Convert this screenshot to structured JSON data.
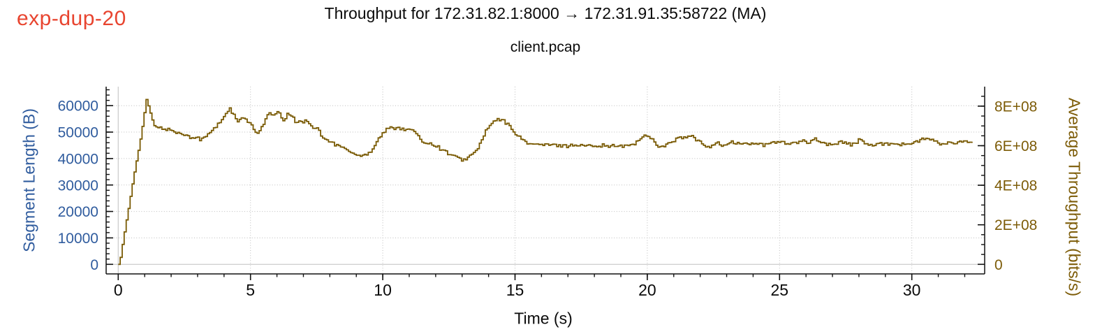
{
  "corner_label": "exp-dup-20",
  "title": "Throughput for 172.31.82.1:8000 → 172.31.91.35:58722 (MA)",
  "subtitle": "client.pcap",
  "colors": {
    "corner_label": "#e84530",
    "left_axis": "#305c9e",
    "right_axis": "#7d5c08",
    "line": "#795a03",
    "grid_dotted": "#bdbdbd",
    "grid_zero": "#c8c8c8",
    "axis": "#111111",
    "title_text": "#0b0b0b"
  },
  "chart_data": {
    "type": "line",
    "title": "Throughput for 172.31.82.1:8000 → 172.31.91.35:58722 (MA)",
    "subtitle": "client.pcap",
    "legend": "none",
    "grid": {
      "style": "dotted",
      "v_lines_at_seconds": [
        5,
        10,
        15,
        20,
        25,
        30
      ],
      "h_lines_at_segment_length": [
        10000,
        20000,
        30000,
        40000,
        50000,
        60000
      ],
      "solid_zero_lines": true
    },
    "x_axis": {
      "label": "Time (s)",
      "unit": "s",
      "tick_labels": [
        "0",
        "5",
        "10",
        "15",
        "20",
        "25",
        "30"
      ],
      "tick_values": [
        0,
        5,
        10,
        15,
        20,
        25,
        30
      ],
      "minor_tick_step": 1,
      "range": [
        0,
        32.75
      ]
    },
    "y_axis_left": {
      "label": "Segment Length (B)",
      "unit": "B",
      "color": "#305c9e",
      "tick_labels": [
        "0",
        "10000",
        "20000",
        "30000",
        "40000",
        "50000",
        "60000"
      ],
      "tick_values": [
        0,
        10000,
        20000,
        30000,
        40000,
        50000,
        60000
      ],
      "minor_tick_step": 2000,
      "range": [
        0,
        67000
      ]
    },
    "y_axis_right": {
      "label": "Average Throughput (bits/s)",
      "unit": "bits/s",
      "color": "#7d5c08",
      "tick_labels": [
        "0",
        "2E+08",
        "4E+08",
        "6E+08",
        "8E+08"
      ],
      "tick_values": [
        0,
        200000000,
        400000000,
        600000000,
        800000000
      ],
      "minor_tick_step": 50000000,
      "range": [
        0,
        900000000
      ]
    },
    "series": [
      {
        "name": "Average Throughput (MA)",
        "y_axis": "right",
        "color": "#795a03",
        "unit": "Mbit/s",
        "points": [
          [
            0,
            0
          ],
          [
            0.08,
            40
          ],
          [
            0.16,
            110
          ],
          [
            0.24,
            175
          ],
          [
            0.32,
            240
          ],
          [
            0.4,
            300
          ],
          [
            0.48,
            370
          ],
          [
            0.56,
            435
          ],
          [
            0.64,
            500
          ],
          [
            0.72,
            555
          ],
          [
            0.8,
            615
          ],
          [
            0.88,
            680
          ],
          [
            0.94,
            730
          ],
          [
            1.0,
            795
          ],
          [
            1.05,
            834
          ],
          [
            1.1,
            815
          ],
          [
            1.16,
            780
          ],
          [
            1.22,
            755
          ],
          [
            1.3,
            720
          ],
          [
            1.38,
            690
          ],
          [
            1.45,
            692
          ],
          [
            1.52,
            685
          ],
          [
            1.6,
            693
          ],
          [
            1.68,
            682
          ],
          [
            1.76,
            690
          ],
          [
            1.84,
            678
          ],
          [
            1.92,
            685
          ],
          [
            2.0,
            672
          ],
          [
            2.08,
            680
          ],
          [
            2.16,
            662
          ],
          [
            2.25,
            668
          ],
          [
            2.34,
            655
          ],
          [
            2.43,
            662
          ],
          [
            2.52,
            648
          ],
          [
            2.61,
            655
          ],
          [
            2.7,
            642
          ],
          [
            2.8,
            650
          ],
          [
            2.9,
            638
          ],
          [
            3.0,
            642
          ],
          [
            3.1,
            630
          ],
          [
            3.2,
            636
          ],
          [
            3.32,
            650
          ],
          [
            3.44,
            665
          ],
          [
            3.56,
            682
          ],
          [
            3.68,
            695
          ],
          [
            3.8,
            718
          ],
          [
            3.92,
            735
          ],
          [
            4.02,
            760
          ],
          [
            4.1,
            775
          ],
          [
            4.18,
            790
          ],
          [
            4.26,
            770
          ],
          [
            4.34,
            755
          ],
          [
            4.42,
            738
          ],
          [
            4.5,
            720
          ],
          [
            4.58,
            728
          ],
          [
            4.68,
            740
          ],
          [
            4.78,
            735
          ],
          [
            4.88,
            722
          ],
          [
            4.98,
            705
          ],
          [
            5.08,
            688
          ],
          [
            5.18,
            666
          ],
          [
            5.28,
            672
          ],
          [
            5.38,
            688
          ],
          [
            5.46,
            710
          ],
          [
            5.55,
            735
          ],
          [
            5.63,
            752
          ],
          [
            5.72,
            765
          ],
          [
            5.8,
            755
          ],
          [
            5.88,
            748
          ],
          [
            5.96,
            770
          ],
          [
            6.05,
            763
          ],
          [
            6.13,
            747
          ],
          [
            6.21,
            730
          ],
          [
            6.3,
            737
          ],
          [
            6.38,
            758
          ],
          [
            6.46,
            764
          ],
          [
            6.55,
            747
          ],
          [
            6.63,
            730
          ],
          [
            6.72,
            712
          ],
          [
            6.8,
            724
          ],
          [
            6.88,
            730
          ],
          [
            6.96,
            718
          ],
          [
            7.05,
            724
          ],
          [
            7.13,
            730
          ],
          [
            7.22,
            710
          ],
          [
            7.3,
            700
          ],
          [
            7.38,
            690
          ],
          [
            7.46,
            692
          ],
          [
            7.55,
            682
          ],
          [
            7.6,
            665
          ],
          [
            7.68,
            648
          ],
          [
            7.76,
            630
          ],
          [
            7.84,
            632
          ],
          [
            7.92,
            618
          ],
          [
            8.0,
            624
          ],
          [
            8.1,
            612
          ],
          [
            8.18,
            600
          ],
          [
            8.27,
            606
          ],
          [
            8.35,
            594
          ],
          [
            8.43,
            600
          ],
          [
            8.52,
            588
          ],
          [
            8.6,
            580
          ],
          [
            8.68,
            573
          ],
          [
            8.77,
            568
          ],
          [
            8.85,
            560
          ],
          [
            8.93,
            552
          ],
          [
            9.02,
            560
          ],
          [
            9.1,
            550
          ],
          [
            9.18,
            554
          ],
          [
            9.27,
            560
          ],
          [
            9.35,
            552
          ],
          [
            9.43,
            565
          ],
          [
            9.52,
            572
          ],
          [
            9.6,
            584
          ],
          [
            9.68,
            606
          ],
          [
            9.77,
            625
          ],
          [
            9.85,
            642
          ],
          [
            9.93,
            655
          ],
          [
            10.02,
            666
          ],
          [
            10.1,
            678
          ],
          [
            10.18,
            688
          ],
          [
            10.26,
            692
          ],
          [
            10.35,
            686
          ],
          [
            10.45,
            691
          ],
          [
            10.55,
            695
          ],
          [
            10.63,
            687
          ],
          [
            10.72,
            692
          ],
          [
            10.82,
            680
          ],
          [
            10.92,
            675
          ],
          [
            11.0,
            686
          ],
          [
            11.08,
            680
          ],
          [
            11.17,
            674
          ],
          [
            11.26,
            650
          ],
          [
            11.35,
            640
          ],
          [
            11.44,
            628
          ],
          [
            11.53,
            620
          ],
          [
            11.62,
            615
          ],
          [
            11.72,
            610
          ],
          [
            11.82,
            612
          ],
          [
            11.92,
            605
          ],
          [
            12.02,
            598
          ],
          [
            12.12,
            587
          ],
          [
            12.22,
            580
          ],
          [
            12.32,
            574
          ],
          [
            12.42,
            564
          ],
          [
            12.52,
            556
          ],
          [
            12.62,
            550
          ],
          [
            12.72,
            543
          ],
          [
            12.82,
            536
          ],
          [
            12.92,
            530
          ],
          [
            13.0,
            527
          ],
          [
            13.1,
            534
          ],
          [
            13.2,
            540
          ],
          [
            13.3,
            552
          ],
          [
            13.42,
            560
          ],
          [
            13.52,
            578
          ],
          [
            13.62,
            600
          ],
          [
            13.72,
            630
          ],
          [
            13.82,
            660
          ],
          [
            13.92,
            682
          ],
          [
            14.02,
            700
          ],
          [
            14.12,
            715
          ],
          [
            14.22,
            725
          ],
          [
            14.32,
            730
          ],
          [
            14.42,
            733
          ],
          [
            14.52,
            728
          ],
          [
            14.62,
            715
          ],
          [
            14.72,
            705
          ],
          [
            14.82,
            690
          ],
          [
            14.92,
            678
          ],
          [
            15.02,
            657
          ],
          [
            15.14,
            642
          ],
          [
            15.26,
            630
          ],
          [
            15.38,
            620
          ],
          [
            15.5,
            612
          ],
          [
            15.64,
            607
          ],
          [
            15.78,
            604
          ],
          [
            15.92,
            608
          ],
          [
            16.06,
            602
          ],
          [
            16.2,
            606
          ],
          [
            16.35,
            600
          ],
          [
            16.5,
            605
          ],
          [
            16.65,
            598
          ],
          [
            16.8,
            604
          ],
          [
            16.95,
            597
          ],
          [
            17.1,
            603
          ],
          [
            17.25,
            606
          ],
          [
            17.4,
            598
          ],
          [
            17.55,
            604
          ],
          [
            17.7,
            597
          ],
          [
            17.85,
            602
          ],
          [
            18.0,
            605
          ],
          [
            18.15,
            598
          ],
          [
            18.3,
            603
          ],
          [
            18.45,
            596
          ],
          [
            18.6,
            602
          ],
          [
            18.75,
            595
          ],
          [
            18.9,
            600
          ],
          [
            19.05,
            594
          ],
          [
            19.2,
            600
          ],
          [
            19.35,
            606
          ],
          [
            19.5,
            612
          ],
          [
            19.65,
            625
          ],
          [
            19.8,
            642
          ],
          [
            19.92,
            656
          ],
          [
            20.05,
            648
          ],
          [
            20.18,
            630
          ],
          [
            20.3,
            610
          ],
          [
            20.42,
            598
          ],
          [
            20.55,
            594
          ],
          [
            20.68,
            602
          ],
          [
            20.8,
            610
          ],
          [
            20.92,
            620
          ],
          [
            21.05,
            632
          ],
          [
            21.18,
            640
          ],
          [
            21.3,
            636
          ],
          [
            21.42,
            642
          ],
          [
            21.55,
            646
          ],
          [
            21.68,
            648
          ],
          [
            21.8,
            630
          ],
          [
            21.92,
            620
          ],
          [
            22.05,
            610
          ],
          [
            22.18,
            600
          ],
          [
            22.3,
            594
          ],
          [
            22.45,
            605
          ],
          [
            22.6,
            615
          ],
          [
            22.75,
            605
          ],
          [
            22.9,
            600
          ],
          [
            23.05,
            610
          ],
          [
            23.2,
            618
          ],
          [
            23.35,
            610
          ],
          [
            23.5,
            614
          ],
          [
            23.65,
            608
          ],
          [
            23.8,
            612
          ],
          [
            23.95,
            606
          ],
          [
            24.1,
            614
          ],
          [
            24.25,
            605
          ],
          [
            24.4,
            600
          ],
          [
            24.55,
            610
          ],
          [
            24.7,
            616
          ],
          [
            24.85,
            620
          ],
          [
            25.0,
            624
          ],
          [
            25.15,
            612
          ],
          [
            25.3,
            608
          ],
          [
            25.45,
            616
          ],
          [
            25.6,
            610
          ],
          [
            25.75,
            618
          ],
          [
            25.9,
            624
          ],
          [
            26.05,
            615
          ],
          [
            26.2,
            630
          ],
          [
            26.35,
            637
          ],
          [
            26.5,
            622
          ],
          [
            26.65,
            612
          ],
          [
            26.8,
            606
          ],
          [
            26.95,
            612
          ],
          [
            27.1,
            606
          ],
          [
            27.25,
            615
          ],
          [
            27.4,
            620
          ],
          [
            27.55,
            612
          ],
          [
            27.7,
            605
          ],
          [
            27.85,
            612
          ],
          [
            28.0,
            630
          ],
          [
            28.12,
            620
          ],
          [
            28.25,
            610
          ],
          [
            28.4,
            605
          ],
          [
            28.55,
            598
          ],
          [
            28.7,
            605
          ],
          [
            28.85,
            610
          ],
          [
            29.0,
            612
          ],
          [
            29.15,
            608
          ],
          [
            29.3,
            615
          ],
          [
            29.45,
            610
          ],
          [
            29.6,
            605
          ],
          [
            29.75,
            612
          ],
          [
            29.9,
            608
          ],
          [
            30.05,
            615
          ],
          [
            30.2,
            622
          ],
          [
            30.35,
            630
          ],
          [
            30.5,
            635
          ],
          [
            30.65,
            637
          ],
          [
            30.8,
            625
          ],
          [
            30.95,
            612
          ],
          [
            31.1,
            607
          ],
          [
            31.25,
            612
          ],
          [
            31.4,
            615
          ],
          [
            31.55,
            610
          ],
          [
            31.7,
            615
          ],
          [
            31.85,
            618
          ],
          [
            32.0,
            620
          ],
          [
            32.15,
            615
          ],
          [
            32.3,
            620
          ]
        ]
      }
    ]
  }
}
